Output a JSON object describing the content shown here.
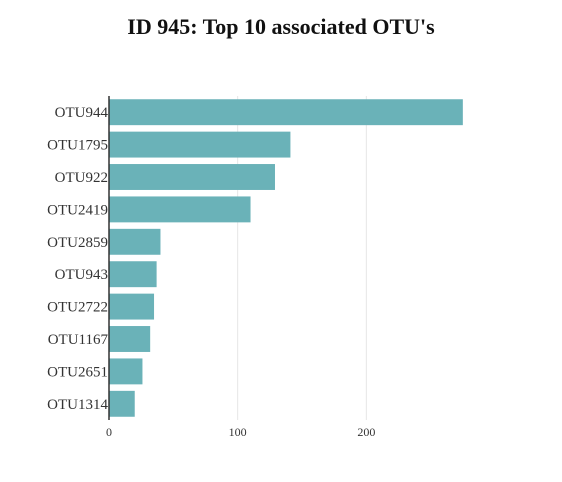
{
  "chart_data": {
    "type": "bar",
    "orientation": "horizontal",
    "title": "ID 945: Top 10 associated OTU's",
    "xlabel": "",
    "ylabel": "",
    "categories": [
      "OTU944",
      "OTU1795",
      "OTU922",
      "OTU2419",
      "OTU2859",
      "OTU943",
      "OTU2722",
      "OTU1167",
      "OTU2651",
      "OTU1314"
    ],
    "values": [
      275,
      141,
      129,
      110,
      40,
      37,
      35,
      32,
      26,
      20
    ],
    "xlim": [
      0,
      300
    ],
    "xticks": [
      0,
      100,
      200
    ],
    "grid": "vertical",
    "bar_color": "#6ab2b8"
  }
}
